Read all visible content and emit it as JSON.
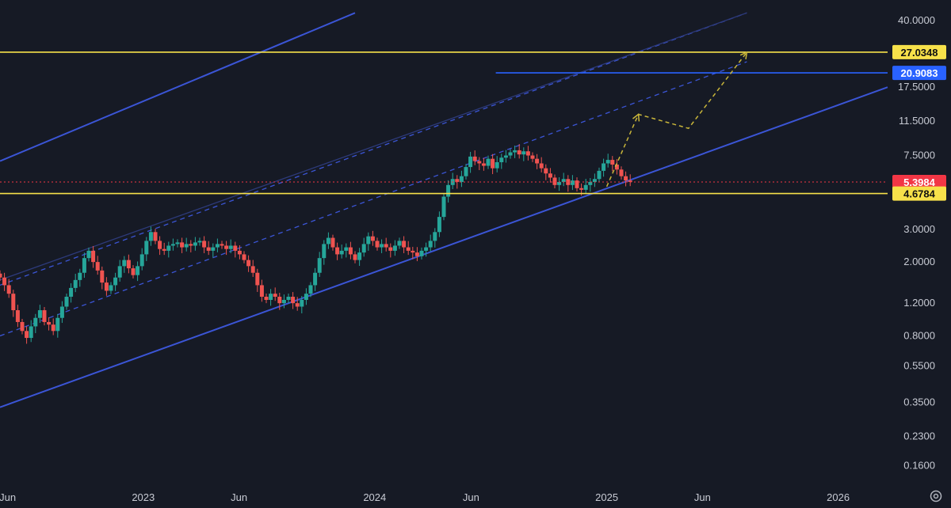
{
  "chart_data": {
    "type": "candlestick",
    "scale": "log",
    "grid": false,
    "ylim": [
      0.14,
      45
    ],
    "y_ticks": [
      "40.0000",
      "17.5000",
      "11.5000",
      "7.5000",
      "3.0000",
      "2.0000",
      "1.2000",
      "0.8000",
      "0.5500",
      "0.3500",
      "0.2300",
      "0.1600"
    ],
    "x_ticks": [
      "Jun",
      "2023",
      "Jun",
      "2024",
      "Jun",
      "2025",
      "Jun",
      "2026"
    ],
    "x_range": [
      "2022-05-20",
      "2026-03-20"
    ],
    "x_tick_dates": [
      "2022-06-01",
      "2023-01-01",
      "2023-06-01",
      "2024-01-01",
      "2024-06-01",
      "2025-01-01",
      "2025-06-01",
      "2026-01-01"
    ],
    "last_price": {
      "label": "5.3984",
      "value": 5.3984,
      "color": "#f23645"
    },
    "horizontal_levels": [
      {
        "label": "27.0348",
        "value": 27.0348,
        "color": "#f7e14a",
        "style": "yellow"
      },
      {
        "label": "20.9083",
        "value": 20.9083,
        "color": "#2962ff",
        "style": "blue",
        "start": "2024-07-10"
      },
      {
        "label": "4.6784",
        "value": 4.6784,
        "color": "#f7e14a",
        "style": "yellow"
      }
    ],
    "trend_lines": [
      {
        "color": "#3b55d6",
        "style": "solid",
        "from": [
          "2022-05-20",
          0.33
        ],
        "to": [
          "2026-03-20",
          17.5
        ]
      },
      {
        "color": "#3b55d6",
        "style": "solid",
        "from": [
          "2022-05-20",
          7.0
        ],
        "to": [
          "2023-12-01",
          44.0
        ]
      },
      {
        "color": "#3b55d6",
        "style": "dashed",
        "from": [
          "2022-05-20",
          0.8
        ],
        "to": [
          "2025-08-10",
          24.0
        ]
      },
      {
        "color": "#3b55d6",
        "style": "dashed",
        "from": [
          "2022-05-20",
          1.5
        ],
        "to": [
          "2025-08-10",
          44.0
        ]
      },
      {
        "color": "#2d3a7a",
        "style": "solid",
        "from": [
          "2022-05-20",
          1.6
        ],
        "to": [
          "2025-08-10",
          44.0
        ]
      }
    ],
    "projection": {
      "color": "#c9b63a",
      "points": [
        [
          "2025-01-01",
          5.1
        ],
        [
          "2025-02-20",
          12.5
        ],
        [
          "2025-05-10",
          10.5
        ],
        [
          "2025-08-10",
          27.0
        ]
      ]
    },
    "candles_weekly_close": [
      1.65,
      1.5,
      1.35,
      1.1,
      0.95,
      0.85,
      0.78,
      0.9,
      1.0,
      1.1,
      0.95,
      0.92,
      0.85,
      1.0,
      1.15,
      1.3,
      1.45,
      1.6,
      1.75,
      2.1,
      2.3,
      2.0,
      1.8,
      1.55,
      1.4,
      1.5,
      1.65,
      1.9,
      2.05,
      1.85,
      1.7,
      1.9,
      2.2,
      2.6,
      2.9,
      2.6,
      2.35,
      2.3,
      2.45,
      2.5,
      2.55,
      2.4,
      2.5,
      2.45,
      2.55,
      2.6,
      2.4,
      2.3,
      2.4,
      2.5,
      2.45,
      2.35,
      2.45,
      2.3,
      2.2,
      2.05,
      1.9,
      1.75,
      1.5,
      1.3,
      1.25,
      1.35,
      1.3,
      1.2,
      1.25,
      1.3,
      1.2,
      1.15,
      1.25,
      1.35,
      1.5,
      1.75,
      2.1,
      2.5,
      2.7,
      2.4,
      2.2,
      2.3,
      2.4,
      2.2,
      2.05,
      2.25,
      2.5,
      2.75,
      2.6,
      2.4,
      2.5,
      2.4,
      2.3,
      2.45,
      2.6,
      2.4,
      2.3,
      2.25,
      2.15,
      2.3,
      2.4,
      2.6,
      2.9,
      3.5,
      4.5,
      5.2,
      5.6,
      5.4,
      5.8,
      6.5,
      7.4,
      7.0,
      6.8,
      6.6,
      7.2,
      6.4,
      6.9,
      7.3,
      7.5,
      7.8,
      8.0,
      7.6,
      7.9,
      7.5,
      7.2,
      6.8,
      6.4,
      6.0,
      5.7,
      5.2,
      5.4,
      5.6,
      5.2,
      5.5,
      5.0,
      4.9,
      5.2,
      5.4,
      5.6,
      6.2,
      6.8,
      7.1,
      6.7,
      6.3,
      5.8,
      5.5,
      5.4
    ]
  }
}
